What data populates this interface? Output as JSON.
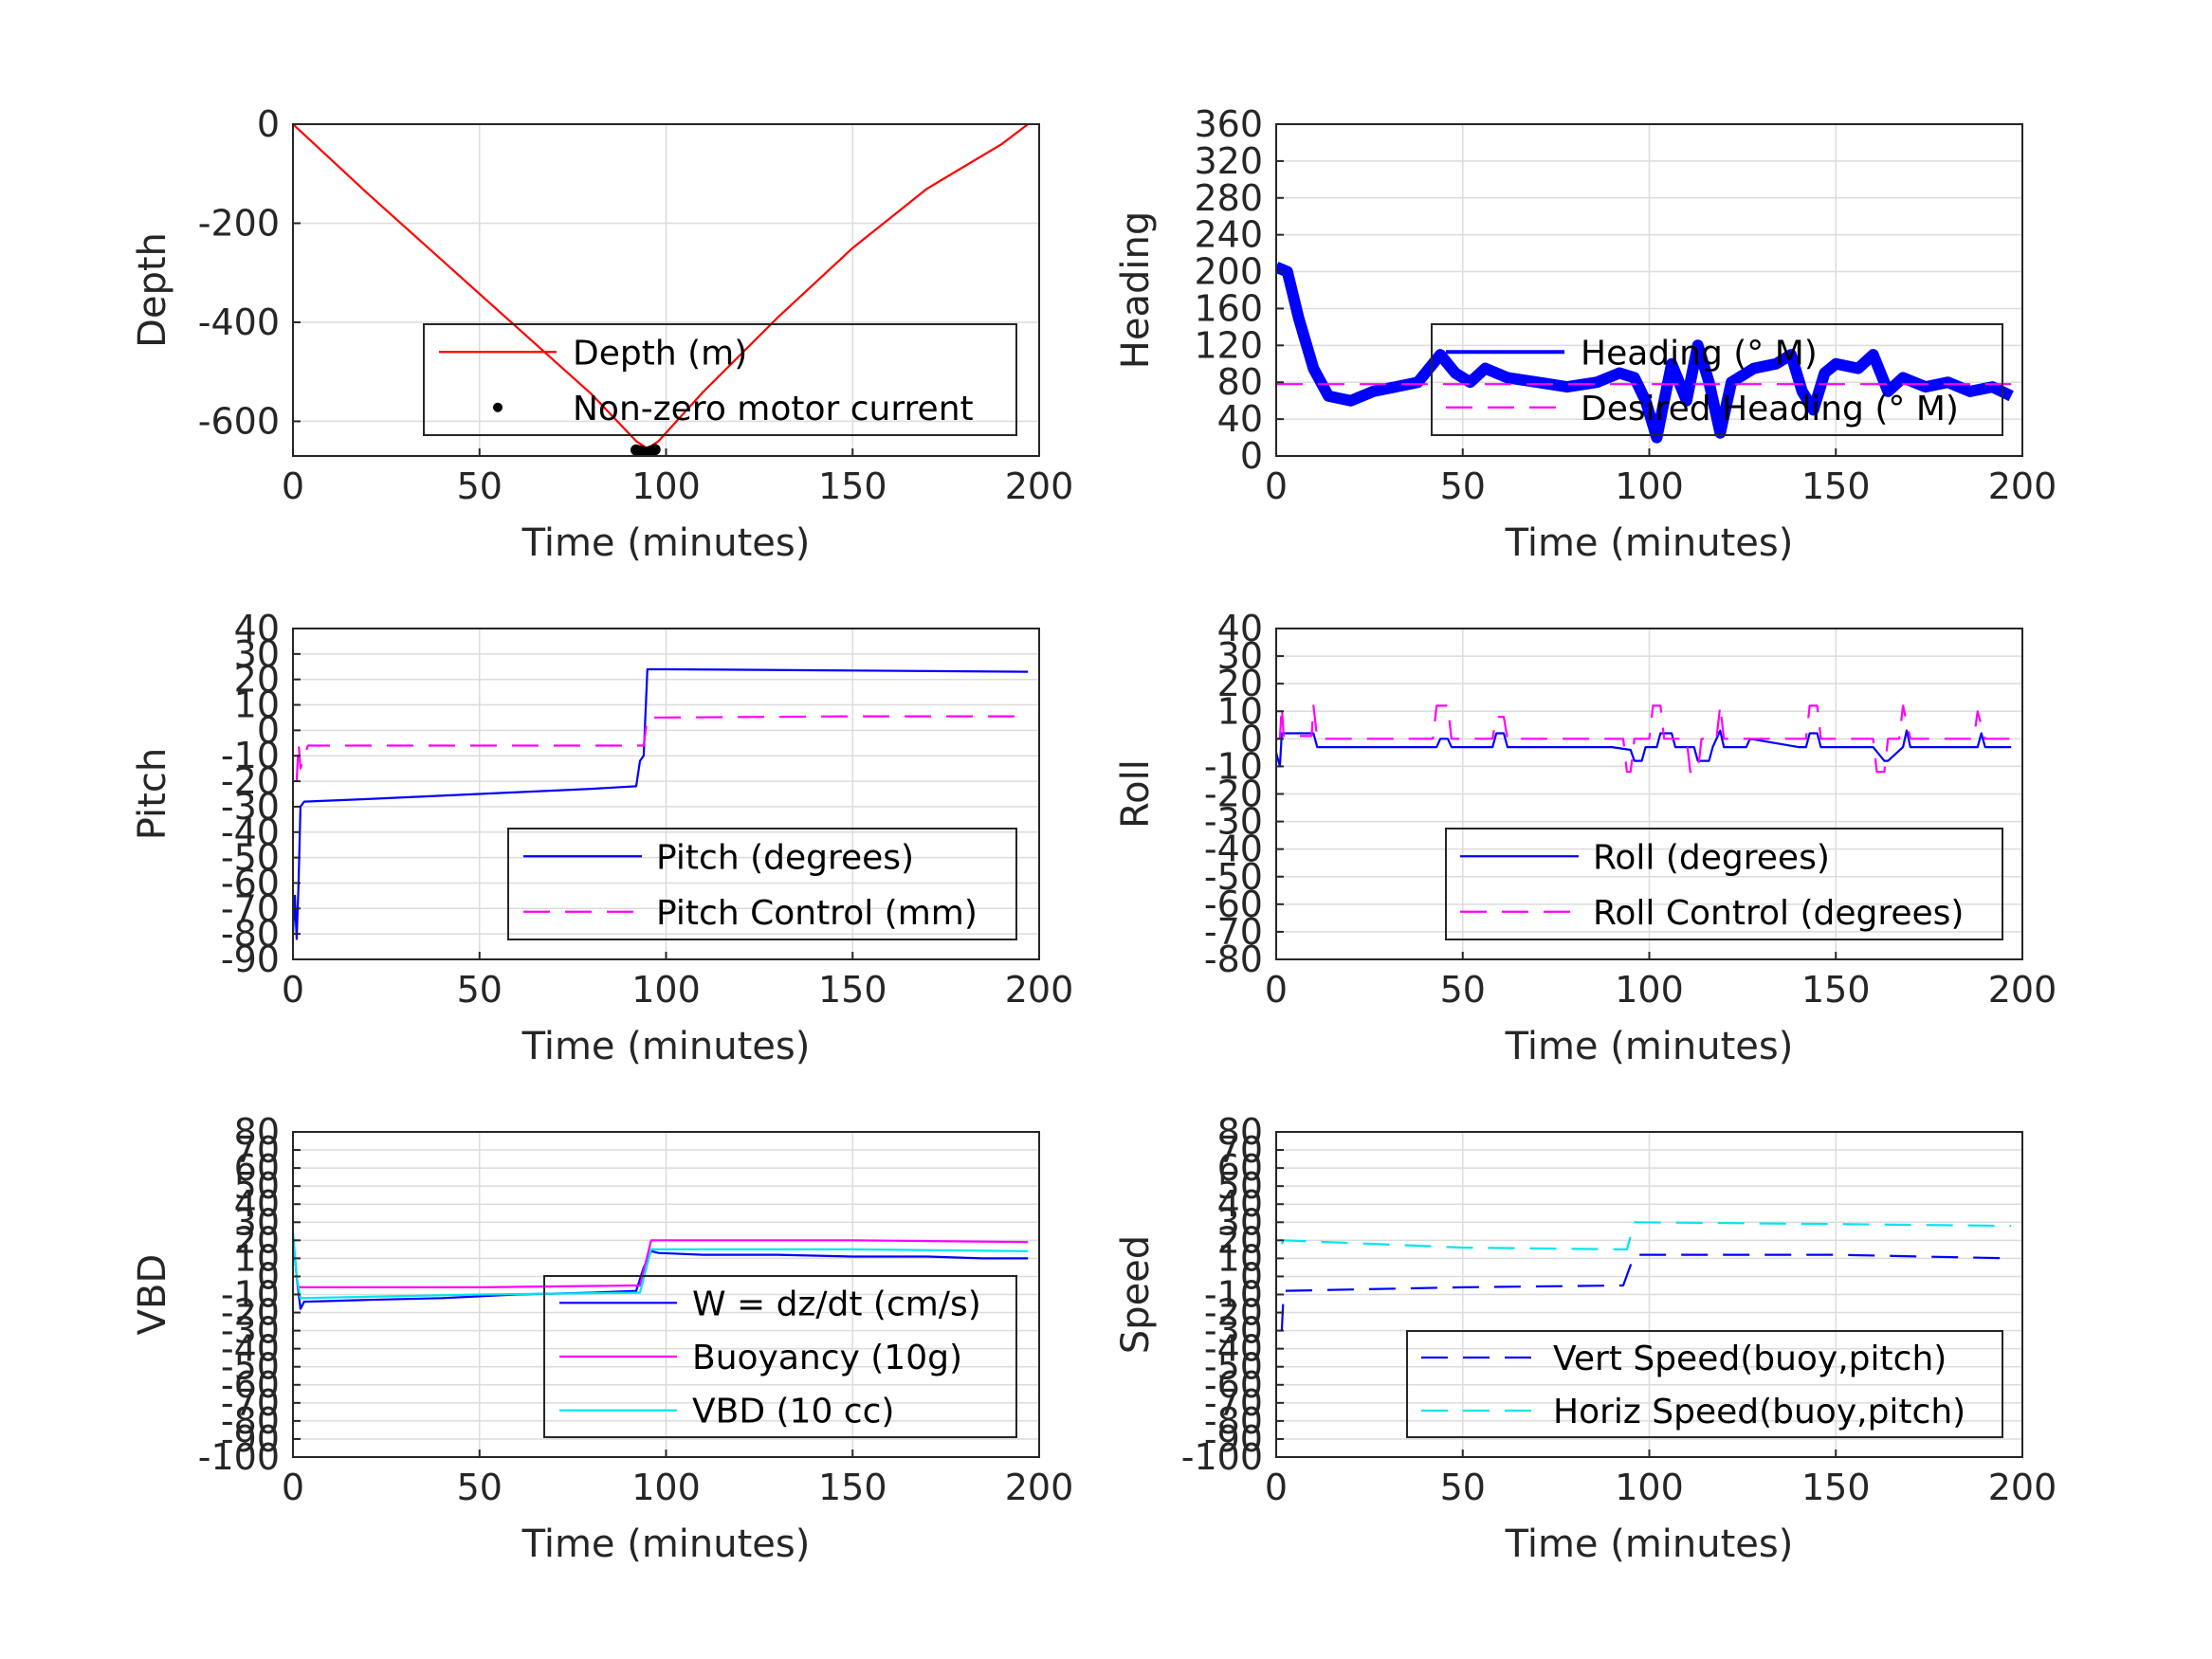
{
  "chart_data": [
    {
      "type": "line",
      "xlabel": "Time (minutes)",
      "ylabel": "Depth",
      "xlim": [
        0,
        200
      ],
      "ylim": [
        -670,
        0
      ],
      "xticks": [
        0,
        50,
        100,
        150,
        200
      ],
      "yticks": [
        -600,
        -400,
        -200,
        0
      ],
      "grid": true,
      "legend_position": "lower-right",
      "series": [
        {
          "name": "Depth (m)",
          "style": "solid",
          "color": "#ff0000",
          "x": [
            0,
            20,
            40,
            60,
            80,
            92,
            95,
            98,
            110,
            130,
            150,
            170,
            190,
            197
          ],
          "y": [
            0,
            -140,
            -275,
            -410,
            -545,
            -640,
            -655,
            -640,
            -540,
            -390,
            -250,
            -130,
            -40,
            0
          ]
        },
        {
          "name": "Non-zero motor current",
          "style": "dots",
          "color": "#000000",
          "x": [
            92,
            93,
            94,
            95,
            96,
            97
          ],
          "y": [
            -658,
            -660,
            -662,
            -662,
            -660,
            -657
          ]
        }
      ]
    },
    {
      "type": "line",
      "xlabel": "Time (minutes)",
      "ylabel": "Heading",
      "xlim": [
        0,
        200
      ],
      "ylim": [
        0,
        360
      ],
      "xticks": [
        0,
        50,
        100,
        150,
        200
      ],
      "yticks": [
        0,
        40,
        80,
        120,
        160,
        200,
        240,
        280,
        320,
        360
      ],
      "grid": true,
      "legend_position": "center-right",
      "series": [
        {
          "name": "Heading (° M)",
          "style": "thick",
          "color": "#0000ff",
          "x": [
            0,
            3,
            6,
            10,
            14,
            20,
            26,
            32,
            38,
            44,
            48,
            52,
            56,
            62,
            70,
            78,
            86,
            92,
            96,
            99,
            102,
            104,
            106,
            110,
            113,
            116,
            119,
            122,
            128,
            134,
            138,
            141,
            144,
            147,
            150,
            156,
            160,
            164,
            168,
            174,
            180,
            186,
            192,
            197
          ],
          "y": [
            205,
            200,
            150,
            95,
            65,
            60,
            70,
            75,
            80,
            110,
            90,
            80,
            95,
            85,
            80,
            75,
            80,
            90,
            85,
            60,
            20,
            60,
            100,
            60,
            120,
            80,
            25,
            80,
            95,
            100,
            110,
            70,
            50,
            90,
            100,
            95,
            110,
            70,
            85,
            75,
            80,
            70,
            75,
            65
          ]
        },
        {
          "name": "Desired Heading (° M)",
          "style": "dashed",
          "color": "#ff00ff",
          "x": [
            0,
            197
          ],
          "y": [
            78,
            78
          ]
        }
      ]
    },
    {
      "type": "line",
      "xlabel": "Time (minutes)",
      "ylabel": "Pitch",
      "xlim": [
        0,
        200
      ],
      "ylim": [
        -90,
        40
      ],
      "xticks": [
        0,
        50,
        100,
        150,
        200
      ],
      "yticks": [
        -90,
        -80,
        -70,
        -60,
        -50,
        -40,
        -30,
        -20,
        -10,
        0,
        10,
        20,
        30,
        40
      ],
      "grid": true,
      "legend_position": "lower-right",
      "series": [
        {
          "name": "Pitch (degrees)",
          "style": "solid",
          "color": "#0000ff",
          "x": [
            0,
            0.5,
            1,
            1.5,
            2,
            3,
            20,
            50,
            80,
            92,
            93,
            94,
            95,
            100,
            150,
            197
          ],
          "y": [
            -80,
            -65,
            -82,
            -60,
            -30,
            -28,
            -27,
            -25,
            -23,
            -22,
            -12,
            -10,
            24,
            24,
            23.5,
            23
          ]
        },
        {
          "name": "Pitch Control (mm)",
          "style": "dashed",
          "color": "#ff00ff",
          "x": [
            1,
            1.5,
            2,
            4,
            50,
            94,
            95,
            150,
            197
          ],
          "y": [
            -20,
            -5,
            -15,
            -6,
            -6,
            -6,
            5,
            5.5,
            5.5
          ]
        }
      ]
    },
    {
      "type": "line",
      "xlabel": "Time (minutes)",
      "ylabel": "Roll",
      "xlim": [
        0,
        200
      ],
      "ylim": [
        -80,
        40
      ],
      "xticks": [
        0,
        50,
        100,
        150,
        200
      ],
      "yticks": [
        -80,
        -70,
        -60,
        -50,
        -40,
        -30,
        -20,
        -10,
        0,
        10,
        20,
        30,
        40
      ],
      "grid": true,
      "legend_position": "lower-right",
      "series": [
        {
          "name": "Roll (degrees)",
          "style": "solid",
          "color": "#0000ff",
          "x": [
            0,
            1,
            1.5,
            2,
            10,
            11,
            30,
            43,
            44,
            46,
            47,
            58,
            59,
            61,
            62,
            90,
            95,
            96,
            98,
            99,
            102,
            103,
            106,
            107,
            112,
            113,
            116,
            117,
            119,
            120,
            126,
            127,
            140,
            142,
            143,
            145,
            146,
            160,
            163,
            164,
            168,
            169,
            170,
            188,
            189,
            190,
            197
          ],
          "y": [
            -5,
            -10,
            2,
            2,
            2,
            -3,
            -3,
            -3,
            0,
            0,
            -3,
            -3,
            2,
            2,
            -3,
            -3,
            -4,
            -8,
            -8,
            -3,
            -3,
            2,
            2,
            -3,
            -3,
            -8,
            -8,
            -3,
            3,
            -3,
            -3,
            0,
            -3,
            -3,
            2,
            2,
            -3,
            -3,
            -8,
            -8,
            -3,
            3,
            -3,
            -3,
            2,
            -3,
            -3
          ]
        },
        {
          "name": "Roll Control (degrees)",
          "style": "dashed",
          "color": "#ff00ff",
          "x": [
            0,
            1,
            1.5,
            2,
            9.5,
            10,
            11,
            42,
            43,
            46,
            47,
            58,
            59,
            61,
            62,
            93,
            94,
            95,
            96,
            100,
            101,
            103,
            104,
            110,
            111,
            113,
            114,
            118,
            119,
            120,
            142,
            143,
            145,
            146,
            160,
            161,
            163,
            164,
            167,
            168,
            170,
            187,
            188,
            190,
            197
          ],
          "y": [
            0,
            0,
            12,
            1,
            1,
            12,
            0,
            0,
            12,
            12,
            0,
            0,
            8,
            8,
            0,
            0,
            -12,
            -12,
            0,
            0,
            12,
            12,
            0,
            0,
            -12,
            -12,
            0,
            0,
            12,
            0,
            0,
            12,
            12,
            0,
            0,
            -12,
            -12,
            0,
            0,
            12,
            0,
            0,
            10,
            0,
            0
          ]
        }
      ]
    },
    {
      "type": "line",
      "xlabel": "Time (minutes)",
      "ylabel": "VBD",
      "xlim": [
        0,
        200
      ],
      "ylim": [
        -100,
        80
      ],
      "xticks": [
        0,
        50,
        100,
        150,
        200
      ],
      "yticks": [
        -100,
        -90,
        -80,
        -70,
        -60,
        -50,
        -40,
        -30,
        -20,
        -10,
        0,
        10,
        20,
        30,
        40,
        50,
        60,
        70,
        80
      ],
      "grid": true,
      "legend_position": "lower-right",
      "series": [
        {
          "name": "W = dz/dt (cm/s)",
          "style": "solid",
          "color": "#0000ff",
          "x": [
            0,
            1,
            2,
            3,
            20,
            40,
            60,
            80,
            92,
            94,
            96,
            98,
            110,
            130,
            150,
            170,
            185,
            197
          ],
          "y": [
            22,
            0,
            -18,
            -14,
            -13,
            -12,
            -10,
            -9,
            -8,
            5,
            14,
            13,
            12,
            12,
            11,
            11,
            10,
            10
          ]
        },
        {
          "name": "Buoyancy (10g)",
          "style": "solid",
          "color": "#ff00ff",
          "x": [
            1,
            2,
            50,
            92,
            93,
            96,
            150,
            197
          ],
          "y": [
            -5,
            -6,
            -6,
            -5,
            -5,
            20,
            20,
            19
          ]
        },
        {
          "name": "VBD (10 cc)",
          "style": "solid",
          "color": "#00e5ee",
          "x": [
            0,
            1,
            2,
            50,
            92,
            93,
            96,
            150,
            197
          ],
          "y": [
            25,
            0,
            -12,
            -10,
            -9,
            -9,
            15,
            15,
            14
          ]
        }
      ]
    },
    {
      "type": "line",
      "xlabel": "Time (minutes)",
      "ylabel": "Speed",
      "xlim": [
        0,
        200
      ],
      "ylim": [
        -100,
        80
      ],
      "xticks": [
        0,
        50,
        100,
        150,
        200
      ],
      "yticks": [
        -100,
        -90,
        -80,
        -70,
        -60,
        -50,
        -40,
        -30,
        -20,
        -10,
        0,
        10,
        20,
        30,
        40,
        50,
        60,
        70,
        80
      ],
      "grid": true,
      "legend_position": "lower-right",
      "series": [
        {
          "name": "Vert Speed(buoy,pitch)",
          "style": "dashed",
          "color": "#0000ff",
          "x": [
            1.5,
            2,
            50,
            92,
            93,
            96,
            150,
            197
          ],
          "y": [
            -30,
            -8,
            -6,
            -5,
            -5,
            12,
            12,
            10
          ]
        },
        {
          "name": "Horiz Speed(buoy,pitch)",
          "style": "dashed",
          "color": "#00e5ee",
          "x": [
            1.5,
            2,
            50,
            92,
            94,
            96,
            150,
            197
          ],
          "y": [
            18,
            20,
            16,
            15,
            15,
            30,
            29,
            28
          ]
        }
      ]
    }
  ]
}
